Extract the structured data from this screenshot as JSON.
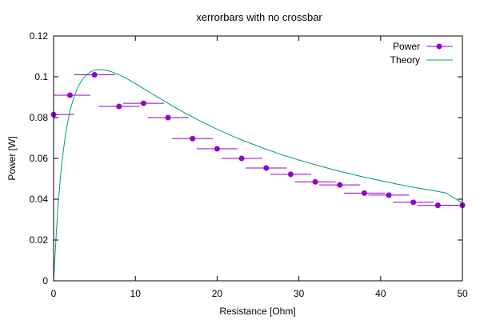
{
  "chart_data": {
    "type": "scatter",
    "title": "xerrorbars with no crossbar",
    "xlabel": "Resistance [Ohm]",
    "ylabel": "Power [W]",
    "xlim": [
      0,
      50
    ],
    "ylim": [
      0,
      0.12
    ],
    "xticks": [
      0,
      10,
      20,
      30,
      40,
      50
    ],
    "yticks": [
      0,
      0.02,
      0.04,
      0.06,
      0.08,
      0.1,
      0.12
    ],
    "xtick_labels": [
      "0",
      "10",
      "20",
      "30",
      "40",
      "50"
    ],
    "ytick_labels": [
      "0",
      "0.02",
      "0.04",
      "0.06",
      "0.08",
      "0.1",
      "0.12"
    ],
    "grid": false,
    "legend_position": "top-right",
    "series": [
      {
        "name": "Power",
        "kind": "points-with-xerrorbars",
        "color": "#9400d3",
        "points": [
          {
            "x": 0,
            "y": 0.0815,
            "xerr": 2.5
          },
          {
            "x": 2,
            "y": 0.091,
            "xerr": 2.5
          },
          {
            "x": 5,
            "y": 0.101,
            "xerr": 2.5
          },
          {
            "x": 8,
            "y": 0.0855,
            "xerr": 2.5
          },
          {
            "x": 11,
            "y": 0.087,
            "xerr": 2.5
          },
          {
            "x": 14,
            "y": 0.08,
            "xerr": 2.5
          },
          {
            "x": 17,
            "y": 0.0697,
            "xerr": 2.5
          },
          {
            "x": 20,
            "y": 0.0647,
            "xerr": 2.5
          },
          {
            "x": 23,
            "y": 0.06,
            "xerr": 2.5
          },
          {
            "x": 26,
            "y": 0.0553,
            "xerr": 2.5
          },
          {
            "x": 29,
            "y": 0.0522,
            "xerr": 2.5
          },
          {
            "x": 32,
            "y": 0.0485,
            "xerr": 2.5
          },
          {
            "x": 35,
            "y": 0.047,
            "xerr": 2.5
          },
          {
            "x": 38,
            "y": 0.043,
            "xerr": 2.5
          },
          {
            "x": 41,
            "y": 0.042,
            "xerr": 2.5
          },
          {
            "x": 44,
            "y": 0.0385,
            "xerr": 2.5
          },
          {
            "x": 47,
            "y": 0.037,
            "xerr": 2.5
          },
          {
            "x": 50,
            "y": 0.037,
            "xerr": 2.5
          }
        ]
      },
      {
        "name": "Theory",
        "kind": "line",
        "color": "#009e73",
        "points": [
          {
            "x": 0,
            "y": 0
          },
          {
            "x": 0.5,
            "y": 0.035
          },
          {
            "x": 1,
            "y": 0.0578
          },
          {
            "x": 1.5,
            "y": 0.0729
          },
          {
            "x": 2,
            "y": 0.0832
          },
          {
            "x": 2.5,
            "y": 0.0903
          },
          {
            "x": 3,
            "y": 0.0952
          },
          {
            "x": 3.5,
            "y": 0.0986
          },
          {
            "x": 4,
            "y": 0.1009
          },
          {
            "x": 4.5,
            "y": 0.1024
          },
          {
            "x": 5,
            "y": 0.1032
          },
          {
            "x": 5.5,
            "y": 0.1035
          },
          {
            "x": 6,
            "y": 0.1035
          },
          {
            "x": 7,
            "y": 0.1026
          },
          {
            "x": 8,
            "y": 0.101
          },
          {
            "x": 9,
            "y": 0.099
          },
          {
            "x": 10,
            "y": 0.0967
          },
          {
            "x": 12,
            "y": 0.0918
          },
          {
            "x": 14,
            "y": 0.087
          },
          {
            "x": 16,
            "y": 0.0824
          },
          {
            "x": 18,
            "y": 0.0782
          },
          {
            "x": 20,
            "y": 0.0743
          },
          {
            "x": 22,
            "y": 0.0707
          },
          {
            "x": 24,
            "y": 0.0675
          },
          {
            "x": 26,
            "y": 0.0645
          },
          {
            "x": 28,
            "y": 0.0617
          },
          {
            "x": 30,
            "y": 0.0592
          },
          {
            "x": 32,
            "y": 0.0569
          },
          {
            "x": 34,
            "y": 0.0547
          },
          {
            "x": 36,
            "y": 0.0527
          },
          {
            "x": 38,
            "y": 0.0508
          },
          {
            "x": 40,
            "y": 0.0491
          },
          {
            "x": 42,
            "y": 0.0474
          },
          {
            "x": 44,
            "y": 0.0459
          },
          {
            "x": 46,
            "y": 0.0445
          },
          {
            "x": 48,
            "y": 0.0431
          },
          {
            "x": 50,
            "y": 0.038
          }
        ]
      }
    ]
  }
}
